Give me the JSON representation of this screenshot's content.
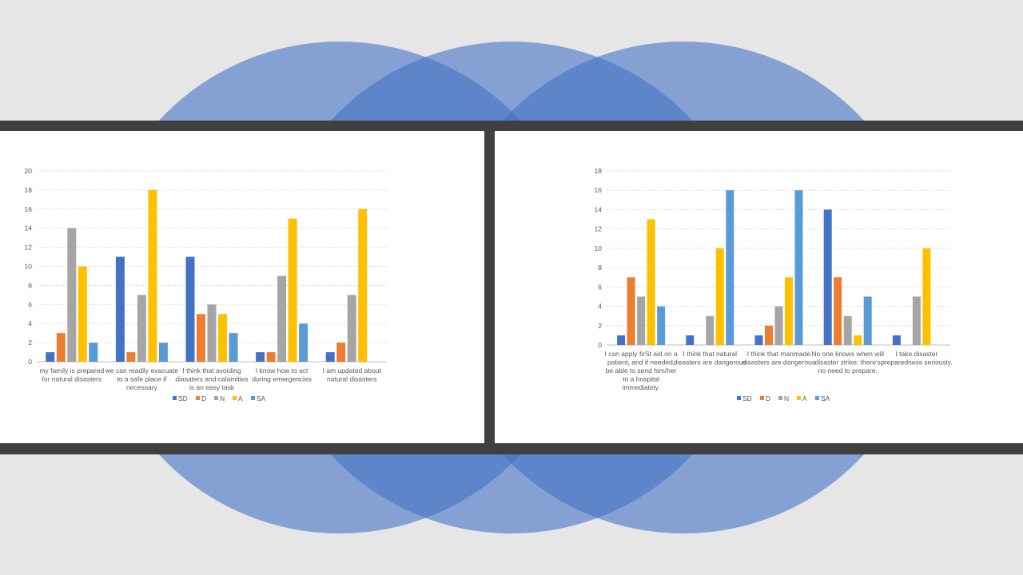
{
  "palette": {
    "background": "#e7e6e6",
    "band": "#404040",
    "circle": "#4472c4",
    "SD": "#4472c4",
    "D": "#ed7d31",
    "N": "#a5a5a5",
    "A": "#ffc000",
    "SA": "#5b9bd5"
  },
  "chart_data": [
    {
      "type": "bar",
      "categories": [
        [
          "my family is prepared",
          "for natural disasters"
        ],
        [
          "we can readily evacuate",
          "to a safe place if",
          "necessary"
        ],
        [
          "I think that avoiding",
          "diasaters and calamities",
          "is an easy task"
        ],
        [
          "I know  how to act",
          "during emergencies"
        ],
        [
          "I am updated about",
          "natural disasters"
        ]
      ],
      "series": [
        {
          "name": "SD",
          "values": [
            1,
            11,
            11,
            1,
            1
          ]
        },
        {
          "name": "D",
          "values": [
            3,
            1,
            5,
            1,
            2
          ]
        },
        {
          "name": "N",
          "values": [
            14,
            7,
            6,
            9,
            7
          ]
        },
        {
          "name": "A",
          "values": [
            10,
            18,
            5,
            15,
            16
          ]
        },
        {
          "name": "SA",
          "values": [
            2,
            2,
            3,
            4,
            0
          ]
        }
      ],
      "ylim": [
        0,
        20
      ],
      "yticks": [
        "0",
        "2",
        "4",
        "6",
        "8",
        "10",
        "12",
        "14",
        "16",
        "18",
        "20"
      ],
      "grid": true,
      "legend": "bottom"
    },
    {
      "type": "bar",
      "categories": [
        [
          "I can apply firSt aid on a",
          "patient, and if needed,",
          "be able to send him/her",
          "to a hospital",
          "immediately."
        ],
        [
          "I think that natural",
          "disasters are dangerous"
        ],
        [
          "I think that manmade",
          "disasters are dangerous"
        ],
        [
          "No one knows when will",
          "disaster strike; there's",
          "no need to prepare."
        ],
        [
          "I take disaster",
          "preparedness seriously."
        ]
      ],
      "series": [
        {
          "name": "SD",
          "values": [
            1,
            1,
            1,
            14,
            1
          ]
        },
        {
          "name": "D",
          "values": [
            7,
            0,
            2,
            7,
            0
          ]
        },
        {
          "name": "N",
          "values": [
            5,
            3,
            4,
            3,
            5
          ]
        },
        {
          "name": "A",
          "values": [
            13,
            10,
            7,
            1,
            10
          ]
        },
        {
          "name": "SA",
          "values": [
            4,
            16,
            16,
            5,
            0
          ]
        }
      ],
      "ylim": [
        0,
        18
      ],
      "yticks": [
        "0",
        "2",
        "4",
        "6",
        "8",
        "10",
        "12",
        "14",
        "16",
        "18"
      ],
      "grid": true,
      "legend": "bottom"
    }
  ]
}
